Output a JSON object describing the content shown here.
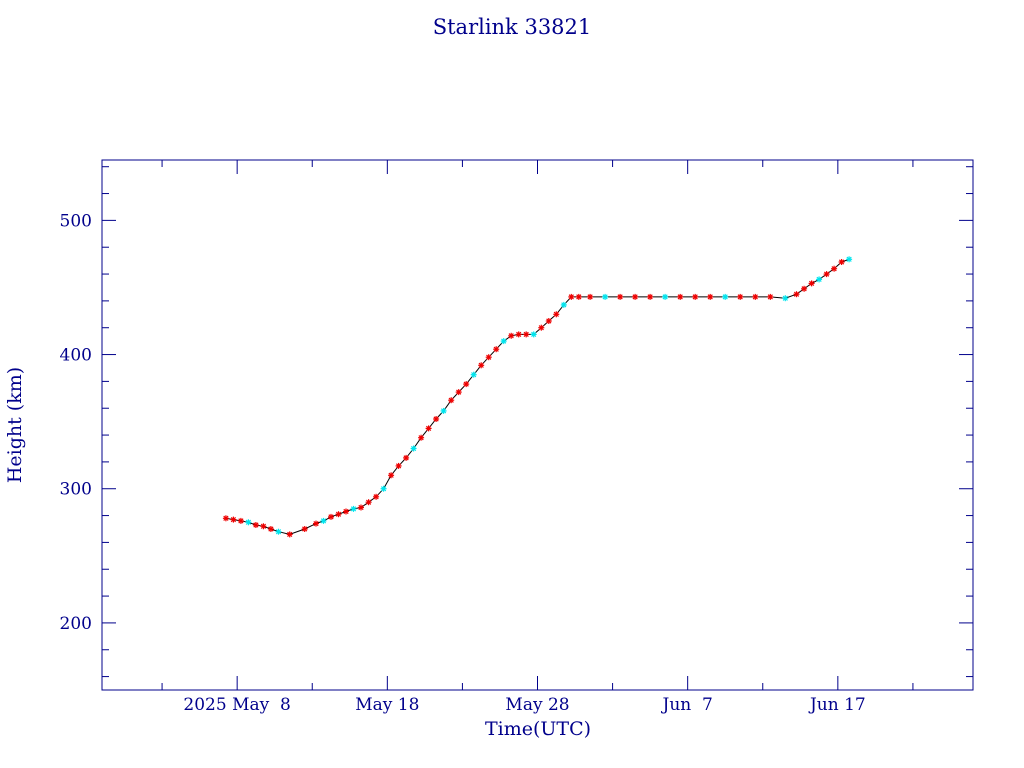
{
  "colors": {
    "axis": "#00008b",
    "line": "#000000",
    "marker_primary": "#ee0000",
    "marker_secondary": "#00e5ee"
  },
  "chart_data": {
    "type": "scatter",
    "title": "Starlink 33821",
    "xlabel": "Time(UTC)",
    "ylabel": "Height (km)",
    "x_axis": {
      "type": "date",
      "range": [
        "2025-04-29",
        "2025-06-26"
      ],
      "ticks": [
        {
          "date": "2025-05-08",
          "label": "2025 May  8"
        },
        {
          "date": "2025-05-18",
          "label": "May 18"
        },
        {
          "date": "2025-05-28",
          "label": "May 28"
        },
        {
          "date": "2025-06-07",
          "label": "Jun  7"
        },
        {
          "date": "2025-06-17",
          "label": "Jun 17"
        }
      ]
    },
    "ylim": [
      150,
      545
    ],
    "yticks": [
      200,
      300,
      400,
      500
    ],
    "grid": false,
    "series": [
      {
        "marker": "asterisk",
        "points": [
          [
            "2025-05-07",
            278
          ],
          [
            "2025-05-07",
            277
          ],
          [
            "2025-05-08",
            276
          ],
          [
            "2025-05-08",
            275
          ],
          [
            "2025-05-09",
            273
          ],
          [
            "2025-05-09",
            272
          ],
          [
            "2025-05-10",
            270
          ],
          [
            "2025-05-10",
            268
          ],
          [
            "2025-05-11",
            266
          ],
          [
            "2025-05-12",
            270
          ],
          [
            "2025-05-13",
            274
          ],
          [
            "2025-05-13",
            276
          ],
          [
            "2025-05-14",
            279
          ],
          [
            "2025-05-14",
            281
          ],
          [
            "2025-05-15",
            283
          ],
          [
            "2025-05-15",
            285
          ],
          [
            "2025-05-16",
            286
          ],
          [
            "2025-05-16",
            290
          ],
          [
            "2025-05-17",
            294
          ],
          [
            "2025-05-17",
            300
          ],
          [
            "2025-05-18",
            310
          ],
          [
            "2025-05-18",
            317
          ],
          [
            "2025-05-19",
            323
          ],
          [
            "2025-05-19",
            330
          ],
          [
            "2025-05-20",
            338
          ],
          [
            "2025-05-20",
            345
          ],
          [
            "2025-05-21",
            352
          ],
          [
            "2025-05-21",
            358
          ],
          [
            "2025-05-22",
            366
          ],
          [
            "2025-05-22",
            372
          ],
          [
            "2025-05-23",
            378
          ],
          [
            "2025-05-23",
            385
          ],
          [
            "2025-05-24",
            392
          ],
          [
            "2025-05-24",
            398
          ],
          [
            "2025-05-25",
            404
          ],
          [
            "2025-05-25",
            410
          ],
          [
            "2025-05-26",
            414
          ],
          [
            "2025-05-26",
            415
          ],
          [
            "2025-05-27",
            415
          ],
          [
            "2025-05-27",
            415
          ],
          [
            "2025-05-28",
            420
          ],
          [
            "2025-05-28",
            425
          ],
          [
            "2025-05-29",
            430
          ],
          [
            "2025-05-29",
            437
          ],
          [
            "2025-05-30",
            443
          ],
          [
            "2025-05-30",
            443
          ],
          [
            "2025-05-31",
            443
          ],
          [
            "2025-06-01",
            443
          ],
          [
            "2025-06-02",
            443
          ],
          [
            "2025-06-03",
            443
          ],
          [
            "2025-06-04",
            443
          ],
          [
            "2025-06-05",
            443
          ],
          [
            "2025-06-06",
            443
          ],
          [
            "2025-06-07",
            443
          ],
          [
            "2025-06-08",
            443
          ],
          [
            "2025-06-09",
            443
          ],
          [
            "2025-06-10",
            443
          ],
          [
            "2025-06-11",
            443
          ],
          [
            "2025-06-12",
            443
          ],
          [
            "2025-06-13",
            442
          ],
          [
            "2025-06-14",
            445
          ],
          [
            "2025-06-14",
            449
          ],
          [
            "2025-06-15",
            453
          ],
          [
            "2025-06-15",
            456
          ],
          [
            "2025-06-16",
            460
          ],
          [
            "2025-06-16",
            464
          ],
          [
            "2025-06-17",
            469
          ],
          [
            "2025-06-17",
            471
          ]
        ]
      }
    ]
  }
}
